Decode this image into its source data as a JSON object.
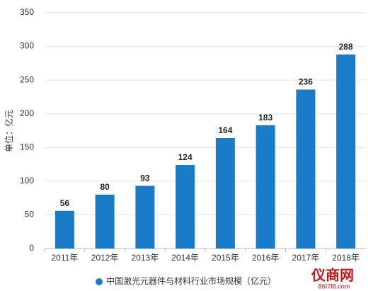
{
  "chart_data": {
    "type": "bar",
    "ylabel": "单位：亿元",
    "categories": [
      "2011年",
      "2012年",
      "2013年",
      "2014年",
      "2015年",
      "2016年",
      "2017年",
      "2018年"
    ],
    "series": [
      {
        "name": "中国激光元器件与材料行业市场规模（亿元）",
        "color": "#1a7bc9",
        "values": [
          56,
          80,
          93,
          124,
          164,
          183,
          236,
          288
        ]
      }
    ],
    "ylim": [
      0,
      350
    ],
    "yticks": [
      0,
      50,
      100,
      150,
      200,
      250,
      300,
      350
    ],
    "grid": true,
    "legend": "bottom",
    "watermark": {
      "name": "仪商网",
      "site": "86I7I8.com"
    }
  }
}
